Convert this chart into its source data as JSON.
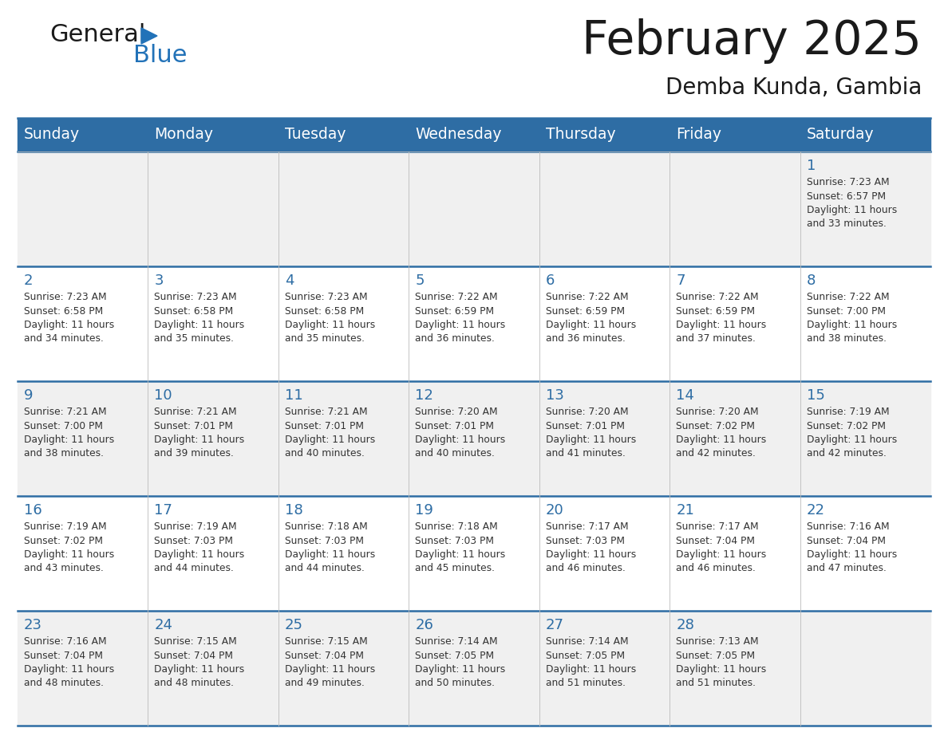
{
  "title": "February 2025",
  "subtitle": "Demba Kunda, Gambia",
  "days_of_week": [
    "Sunday",
    "Monday",
    "Tuesday",
    "Wednesday",
    "Thursday",
    "Friday",
    "Saturday"
  ],
  "header_bg": "#2E6DA4",
  "header_text": "#FFFFFF",
  "cell_bg_even": "#F0F0F0",
  "cell_bg_odd": "#FFFFFF",
  "day_number_color": "#2E6DA4",
  "info_text_color": "#333333",
  "line_color": "#2E6DA4",
  "background_color": "#FFFFFF",
  "logo_general_color": "#1a1a1a",
  "logo_blue_color": "#2272B8",
  "logo_triangle_color": "#2272B8",
  "calendar_data": [
    [
      null,
      null,
      null,
      null,
      null,
      null,
      {
        "day": 1,
        "sunrise": "7:23 AM",
        "sunset": "6:57 PM",
        "daylight": "11 hours and 33 minutes."
      }
    ],
    [
      {
        "day": 2,
        "sunrise": "7:23 AM",
        "sunset": "6:58 PM",
        "daylight": "11 hours and 34 minutes."
      },
      {
        "day": 3,
        "sunrise": "7:23 AM",
        "sunset": "6:58 PM",
        "daylight": "11 hours and 35 minutes."
      },
      {
        "day": 4,
        "sunrise": "7:23 AM",
        "sunset": "6:58 PM",
        "daylight": "11 hours and 35 minutes."
      },
      {
        "day": 5,
        "sunrise": "7:22 AM",
        "sunset": "6:59 PM",
        "daylight": "11 hours and 36 minutes."
      },
      {
        "day": 6,
        "sunrise": "7:22 AM",
        "sunset": "6:59 PM",
        "daylight": "11 hours and 36 minutes."
      },
      {
        "day": 7,
        "sunrise": "7:22 AM",
        "sunset": "6:59 PM",
        "daylight": "11 hours and 37 minutes."
      },
      {
        "day": 8,
        "sunrise": "7:22 AM",
        "sunset": "7:00 PM",
        "daylight": "11 hours and 38 minutes."
      }
    ],
    [
      {
        "day": 9,
        "sunrise": "7:21 AM",
        "sunset": "7:00 PM",
        "daylight": "11 hours and 38 minutes."
      },
      {
        "day": 10,
        "sunrise": "7:21 AM",
        "sunset": "7:01 PM",
        "daylight": "11 hours and 39 minutes."
      },
      {
        "day": 11,
        "sunrise": "7:21 AM",
        "sunset": "7:01 PM",
        "daylight": "11 hours and 40 minutes."
      },
      {
        "day": 12,
        "sunrise": "7:20 AM",
        "sunset": "7:01 PM",
        "daylight": "11 hours and 40 minutes."
      },
      {
        "day": 13,
        "sunrise": "7:20 AM",
        "sunset": "7:01 PM",
        "daylight": "11 hours and 41 minutes."
      },
      {
        "day": 14,
        "sunrise": "7:20 AM",
        "sunset": "7:02 PM",
        "daylight": "11 hours and 42 minutes."
      },
      {
        "day": 15,
        "sunrise": "7:19 AM",
        "sunset": "7:02 PM",
        "daylight": "11 hours and 42 minutes."
      }
    ],
    [
      {
        "day": 16,
        "sunrise": "7:19 AM",
        "sunset": "7:02 PM",
        "daylight": "11 hours and 43 minutes."
      },
      {
        "day": 17,
        "sunrise": "7:19 AM",
        "sunset": "7:03 PM",
        "daylight": "11 hours and 44 minutes."
      },
      {
        "day": 18,
        "sunrise": "7:18 AM",
        "sunset": "7:03 PM",
        "daylight": "11 hours and 44 minutes."
      },
      {
        "day": 19,
        "sunrise": "7:18 AM",
        "sunset": "7:03 PM",
        "daylight": "11 hours and 45 minutes."
      },
      {
        "day": 20,
        "sunrise": "7:17 AM",
        "sunset": "7:03 PM",
        "daylight": "11 hours and 46 minutes."
      },
      {
        "day": 21,
        "sunrise": "7:17 AM",
        "sunset": "7:04 PM",
        "daylight": "11 hours and 46 minutes."
      },
      {
        "day": 22,
        "sunrise": "7:16 AM",
        "sunset": "7:04 PM",
        "daylight": "11 hours and 47 minutes."
      }
    ],
    [
      {
        "day": 23,
        "sunrise": "7:16 AM",
        "sunset": "7:04 PM",
        "daylight": "11 hours and 48 minutes."
      },
      {
        "day": 24,
        "sunrise": "7:15 AM",
        "sunset": "7:04 PM",
        "daylight": "11 hours and 48 minutes."
      },
      {
        "day": 25,
        "sunrise": "7:15 AM",
        "sunset": "7:04 PM",
        "daylight": "11 hours and 49 minutes."
      },
      {
        "day": 26,
        "sunrise": "7:14 AM",
        "sunset": "7:05 PM",
        "daylight": "11 hours and 50 minutes."
      },
      {
        "day": 27,
        "sunrise": "7:14 AM",
        "sunset": "7:05 PM",
        "daylight": "11 hours and 51 minutes."
      },
      {
        "day": 28,
        "sunrise": "7:13 AM",
        "sunset": "7:05 PM",
        "daylight": "11 hours and 51 minutes."
      },
      null
    ]
  ]
}
